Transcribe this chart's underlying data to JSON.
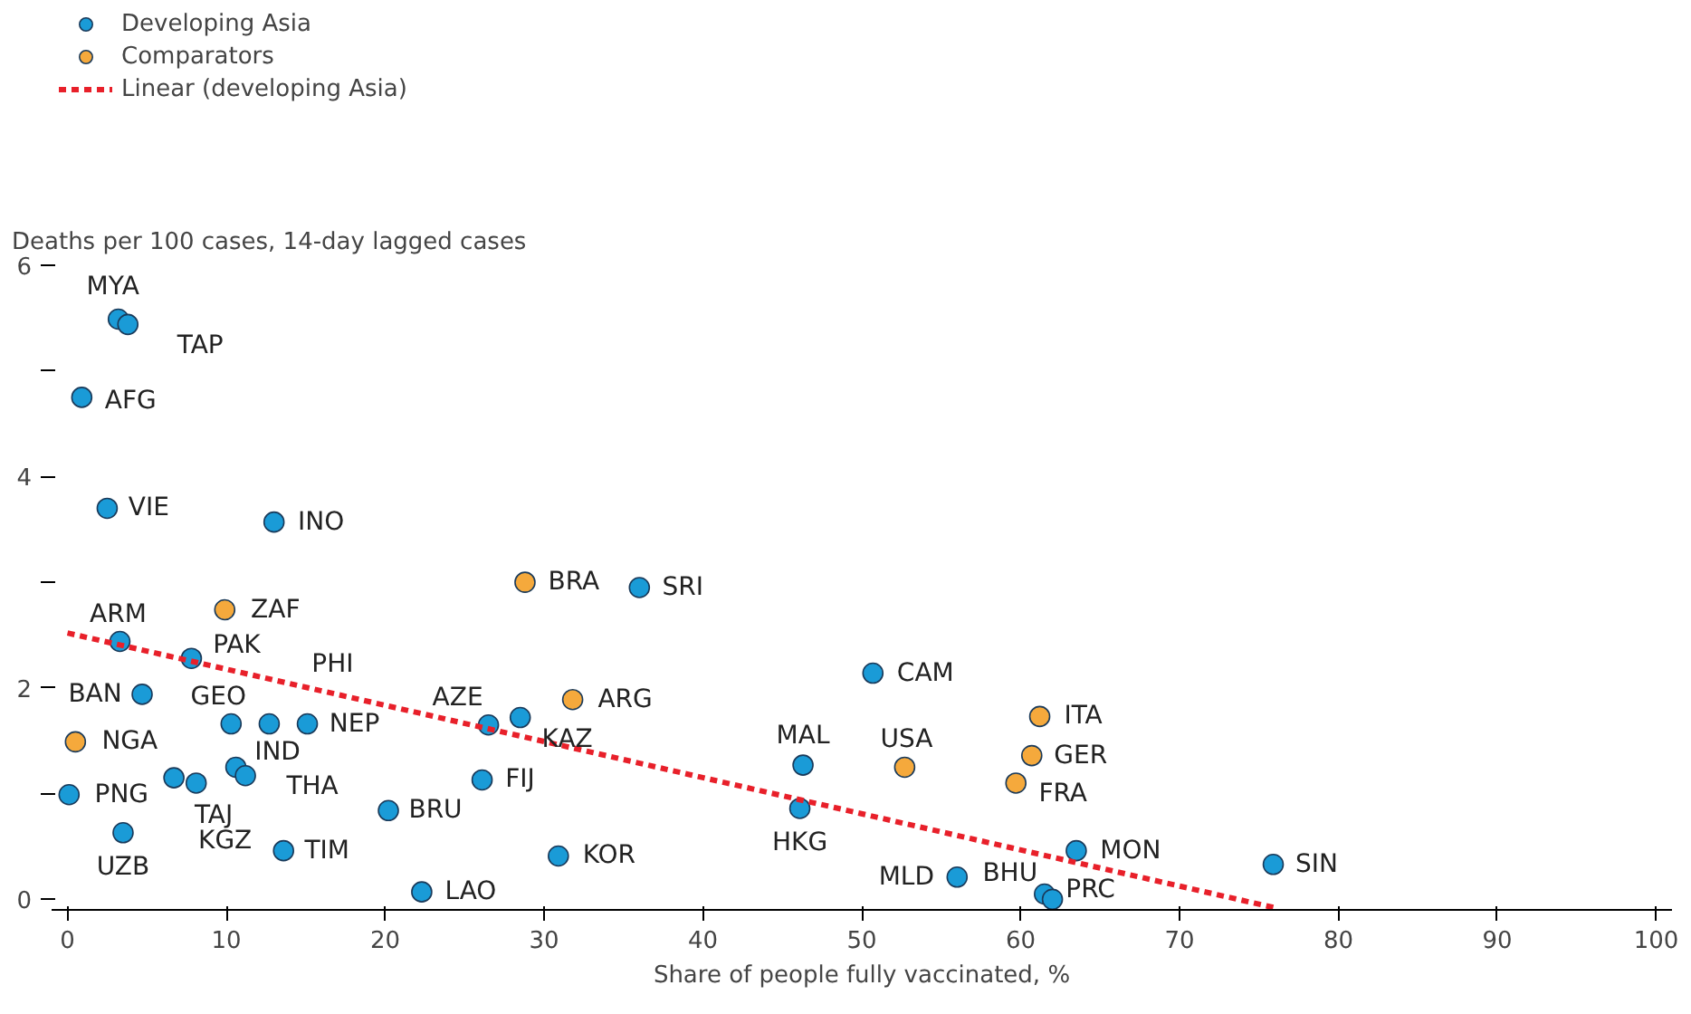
{
  "chart_data": {
    "type": "scatter",
    "ylabel": "Deaths per 100 cases, 14-day lagged cases",
    "xlabel": "Share of people fully vaccinated, %",
    "xlim": [
      -1,
      101
    ],
    "ylim": [
      -0.1,
      6
    ],
    "xticks": [
      0,
      10,
      20,
      30,
      40,
      50,
      60,
      70,
      80,
      90,
      100
    ],
    "yticks": [
      0,
      {
        "value": 1,
        "label": null
      },
      2,
      {
        "value": 3,
        "label": null
      },
      4,
      {
        "value": 5,
        "label": null
      },
      6
    ],
    "grid": false,
    "legend": "top left",
    "marker": "circle",
    "series": [
      {
        "name": "Developing Asia",
        "color": "#1a9bd7",
        "x": [
          3.2,
          3.8,
          0.9,
          2.5,
          13.0,
          3.3,
          7.8,
          36.0,
          4.7,
          10.3,
          12.7,
          15.1,
          26.5,
          28.5,
          50.7,
          46.3,
          46.1,
          0.1,
          10.6,
          11.2,
          6.7,
          8.1,
          3.5,
          13.6,
          20.2,
          26.1,
          30.9,
          22.3,
          56.0,
          61.5,
          62.0,
          63.5,
          75.9
        ],
        "values": [
          5.49,
          5.44,
          4.75,
          3.7,
          3.57,
          2.44,
          2.28,
          2.95,
          1.94,
          1.66,
          1.66,
          1.66,
          1.65,
          1.72,
          2.14,
          1.27,
          0.86,
          0.99,
          1.25,
          1.17,
          1.15,
          1.1,
          0.63,
          0.46,
          0.84,
          1.13,
          0.41,
          0.07,
          0.21,
          0.05,
          0.0,
          0.46,
          0.33
        ],
        "value_labels": [
          "MYA",
          "TAP",
          "AFG",
          "VIE",
          "INO",
          "ARM",
          "PAK",
          "SRI",
          "BAN",
          "GEO",
          "PHI",
          "NEP",
          "AZE",
          "KAZ",
          "CAM",
          "MAL",
          "HKG",
          "PNG",
          "IND",
          "THA",
          "TAJ",
          "KGZ",
          "UZB",
          "TIM",
          "BRU",
          "FIJ",
          "KOR",
          "LAO",
          "MLD",
          "BHU",
          "PRC",
          "MON",
          "SIN"
        ]
      },
      {
        "name": "Comparators",
        "color": "#f5a93c",
        "x": [
          0.5,
          9.9,
          28.8,
          31.8,
          52.7,
          61.2,
          60.7,
          59.7
        ],
        "values": [
          1.49,
          2.74,
          3.0,
          1.89,
          1.25,
          1.73,
          1.36,
          1.1
        ],
        "value_labels": [
          "NGA",
          "ZAF",
          "BRA",
          "ARG",
          "USA",
          "ITA",
          "GER",
          "FRA"
        ]
      },
      {
        "name": "Linear (developing Asia)",
        "type": "line",
        "line_style": "dashed",
        "marker": "none",
        "color": "#e8202a",
        "x": [
          0,
          76
        ],
        "values": [
          2.52,
          -0.08
        ]
      }
    ]
  }
}
